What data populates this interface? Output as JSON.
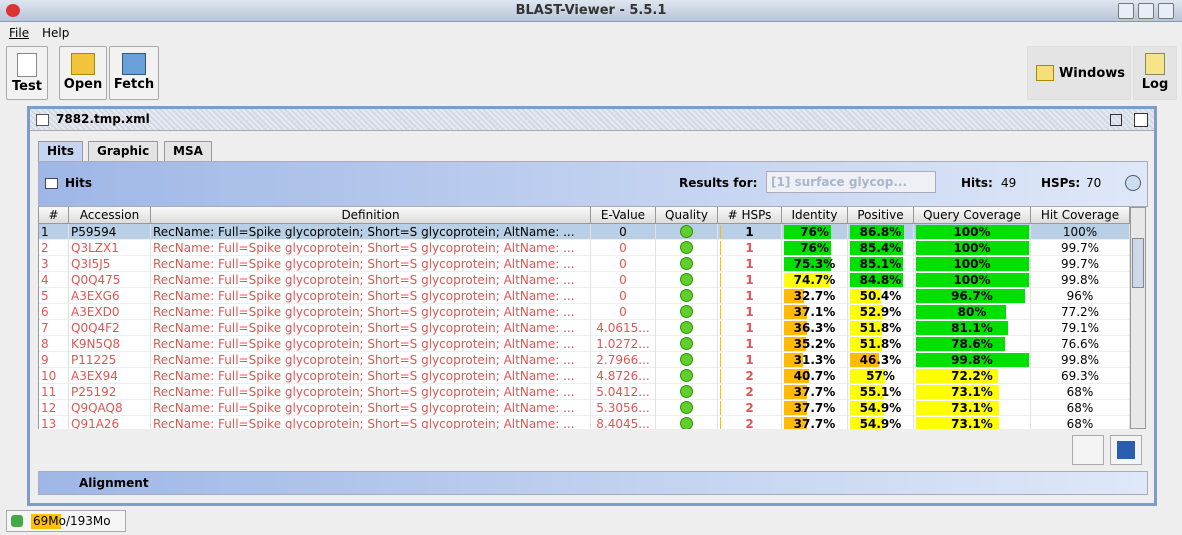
{
  "window": {
    "title": "BLAST-Viewer - 5.5.1"
  },
  "menu": [
    "File",
    "Help"
  ],
  "toolbar": {
    "left": [
      "Test",
      "Open",
      "Fetch"
    ],
    "right": [
      "Windows",
      "Log"
    ]
  },
  "document": {
    "title": "7882.tmp.xml",
    "tabs": [
      "Hits",
      "Graphic",
      "MSA"
    ]
  },
  "hits_panel": {
    "title": "Hits",
    "results_label": "Results for:",
    "results_value": "[1] surface glycop...",
    "hits_label": "Hits:",
    "hits_count": 49,
    "hsps_label": "HSPs:",
    "hsps_count": 70
  },
  "table": {
    "columns": [
      "#",
      "Accession",
      "Definition",
      "E-Value",
      "Quality",
      "# HSPs",
      "Identity",
      "Positive",
      "Query Coverage",
      "Hit Coverage"
    ],
    "rows": [
      [
        1,
        "P59594",
        "RecName: Full=Spike glycoprotein; Short=S glycoprotein; AltName: ...",
        "0",
        1,
        "76%",
        "86.8%",
        "100%",
        "100%"
      ],
      [
        2,
        "Q3LZX1",
        "RecName: Full=Spike glycoprotein; Short=S glycoprotein; AltName: ...",
        "0",
        1,
        "76%",
        "85.4%",
        "100%",
        "99.7%"
      ],
      [
        3,
        "Q3I5J5",
        "RecName: Full=Spike glycoprotein; Short=S glycoprotein; AltName: ...",
        "0",
        1,
        "75.3%",
        "85.1%",
        "100%",
        "99.7%"
      ],
      [
        4,
        "Q0Q475",
        "RecName: Full=Spike glycoprotein; Short=S glycoprotein; AltName: ...",
        "0",
        1,
        "74.7%",
        "84.8%",
        "100%",
        "99.8%"
      ],
      [
        5,
        "A3EXG6",
        "RecName: Full=Spike glycoprotein; Short=S glycoprotein; AltName: ...",
        "0",
        1,
        "32.7%",
        "50.4%",
        "96.7%",
        "96%"
      ],
      [
        6,
        "A3EXD0",
        "RecName: Full=Spike glycoprotein; Short=S glycoprotein; AltName: ...",
        "0",
        1,
        "37.1%",
        "52.9%",
        "80%",
        "77.2%"
      ],
      [
        7,
        "Q0Q4F2",
        "RecName: Full=Spike glycoprotein; Short=S glycoprotein; AltName: ...",
        "4.0615...",
        1,
        "36.3%",
        "51.8%",
        "81.1%",
        "79.1%"
      ],
      [
        8,
        "K9N5Q8",
        "RecName: Full=Spike glycoprotein; Short=S glycoprotein; AltName: ...",
        "1.0272...",
        1,
        "35.2%",
        "51.8%",
        "78.6%",
        "76.6%"
      ],
      [
        9,
        "P11225",
        "RecName: Full=Spike glycoprotein; Short=S glycoprotein; AltName: ...",
        "2.7966...",
        1,
        "31.3%",
        "46.3%",
        "99.8%",
        "99.8%"
      ],
      [
        10,
        "A3EX94",
        "RecName: Full=Spike glycoprotein; Short=S glycoprotein; AltName: ...",
        "4.8726...",
        2,
        "40.7%",
        "57%",
        "72.2%",
        "69.3%"
      ],
      [
        11,
        "P25192",
        "RecName: Full=Spike glycoprotein; Short=S glycoprotein; AltName: ...",
        "5.0412...",
        2,
        "37.7%",
        "55.1%",
        "73.1%",
        "68%"
      ],
      [
        12,
        "Q9QAQ8",
        "RecName: Full=Spike glycoprotein; Short=S glycoprotein; AltName: ...",
        "5.3056...",
        2,
        "37.7%",
        "54.9%",
        "73.1%",
        "68%"
      ],
      [
        13,
        "Q91A26",
        "RecName: Full=Spike glycoprotein; Short=S glycoprotein; AltName: ...",
        "8.4045...",
        2,
        "37.7%",
        "54.9%",
        "73.1%",
        "68%"
      ]
    ]
  },
  "alignment": {
    "title": "Alignment"
  },
  "status": {
    "memory": "69Mo/193Mo"
  }
}
